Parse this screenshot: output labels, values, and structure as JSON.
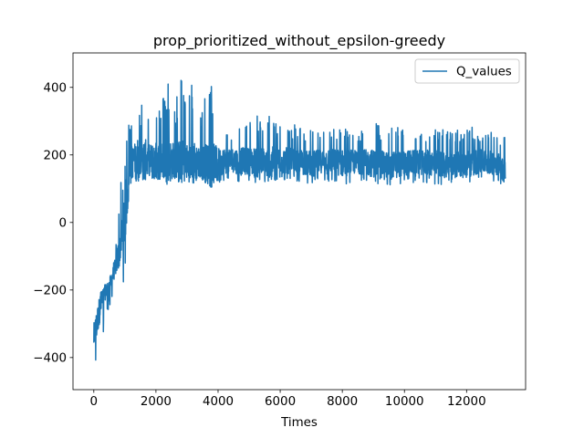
{
  "chart_data": {
    "type": "line",
    "title": "prop_prioritized_without_epsilon-greedy",
    "xlabel": "Times",
    "ylabel": "",
    "xlim": [
      -670,
      13900
    ],
    "ylim": [
      -495,
      502
    ],
    "xticks": [
      0,
      2000,
      4000,
      6000,
      8000,
      10000,
      12000
    ],
    "xtick_labels": [
      "0",
      "2000",
      "4000",
      "6000",
      "8000",
      "10000",
      "12000"
    ],
    "yticks": [
      -400,
      -200,
      0,
      200,
      400
    ],
    "ytick_labels": [
      "−400",
      "−200",
      "0",
      "200",
      "400"
    ],
    "grid": false,
    "legend_position": "top-right",
    "colors": {
      "series": "#1f77b4",
      "axes": "#000000",
      "legend_border": "#cccccc"
    },
    "series": [
      {
        "name": "Q_values",
        "x_range": [
          0,
          13250
        ],
        "x": [
          0,
          100,
          200,
          300,
          400,
          500,
          600,
          700,
          800,
          900,
          1000,
          1100,
          1200,
          1300,
          1400,
          1500,
          1600,
          1800,
          2000,
          2200,
          2400,
          2600,
          2800,
          3000,
          3200,
          3400,
          3600,
          3800,
          4000,
          4500,
          5000,
          5500,
          6000,
          6500,
          7000,
          7500,
          8000,
          8500,
          9000,
          9500,
          10000,
          10500,
          11000,
          11500,
          12000,
          12500,
          13000,
          13250
        ],
        "y_mean": [
          -340,
          -300,
          -250,
          -220,
          -200,
          -185,
          -160,
          -130,
          -90,
          -40,
          20,
          100,
          170,
          190,
          180,
          190,
          185,
          185,
          180,
          185,
          180,
          185,
          175,
          180,
          175,
          180,
          175,
          170,
          180,
          185,
          180,
          175,
          185,
          180,
          175,
          185,
          175,
          180,
          175,
          170,
          175,
          180,
          175,
          170,
          175,
          180,
          175,
          150
        ],
        "y_low": [
          -450,
          -420,
          -380,
          -330,
          -280,
          -250,
          -230,
          -200,
          -170,
          -120,
          -230,
          40,
          80,
          130,
          120,
          125,
          120,
          125,
          120,
          125,
          120,
          125,
          120,
          125,
          120,
          125,
          120,
          100,
          115,
          120,
          115,
          115,
          125,
          120,
          115,
          120,
          110,
          120,
          115,
          110,
          115,
          120,
          110,
          115,
          115,
          110,
          115,
          110
        ],
        "y_high": [
          -270,
          -220,
          -200,
          -200,
          -190,
          -170,
          -130,
          -80,
          60,
          140,
          180,
          300,
          340,
          310,
          455,
          320,
          420,
          330,
          380,
          360,
          440,
          340,
          450,
          360,
          430,
          330,
          380,
          410,
          300,
          280,
          300,
          330,
          300,
          290,
          280,
          270,
          290,
          275,
          300,
          280,
          290,
          270,
          290,
          270,
          290,
          270,
          270,
          270
        ]
      }
    ]
  }
}
